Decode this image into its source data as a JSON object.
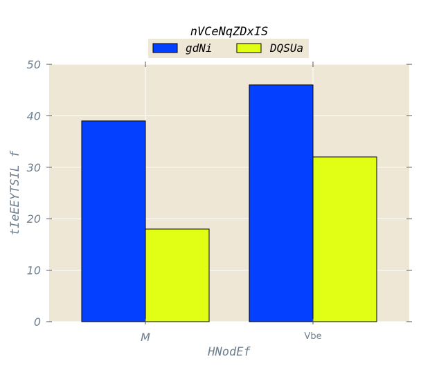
{
  "chart_data": {
    "type": "bar",
    "title": "nVCeNqZDxIS",
    "xlabel": "HNodEf",
    "ylabel": "tIeEEYTSIL f",
    "categories": [
      "M",
      "Vbe"
    ],
    "series": [
      {
        "name": "gdNi",
        "values": [
          39,
          46
        ],
        "color": "#0340ff"
      },
      {
        "name": "DQSUa",
        "values": [
          18,
          32
        ],
        "color": "#e0ff14"
      }
    ],
    "ylim": [
      0,
      50
    ],
    "yticks": [
      0,
      10,
      20,
      30,
      40,
      50
    ],
    "grid": true,
    "legend_position": "top-center",
    "background_color": "#eee7d6"
  }
}
